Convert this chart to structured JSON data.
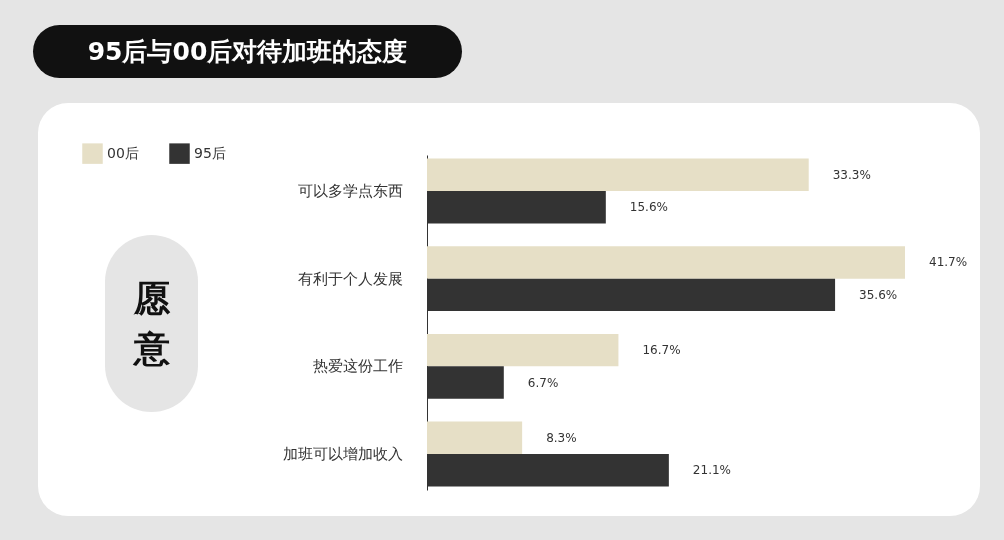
{
  "chart_data": {
    "type": "bar",
    "orientation": "horizontal",
    "title": "95后与00后对待加班的态度",
    "annotations": [
      "愿意"
    ],
    "legend": "top left",
    "categories": [
      "可以多学点东西",
      "有利于个人发展",
      "热爱这份工作",
      "加班可以增加收入"
    ],
    "series": [
      {
        "name": "00后",
        "color": "#e6dfc6",
        "values": [
          33.3,
          41.7,
          16.7,
          8.3
        ],
        "value_labels": [
          "33.3%",
          "41.7%",
          "16.7%",
          "8.3%"
        ]
      },
      {
        "name": "95后",
        "color": "#333333",
        "values": [
          15.6,
          35.6,
          6.7,
          21.1
        ],
        "value_labels": [
          "15.6%",
          "35.6%",
          "6.7%",
          "21.1%"
        ]
      }
    ]
  }
}
